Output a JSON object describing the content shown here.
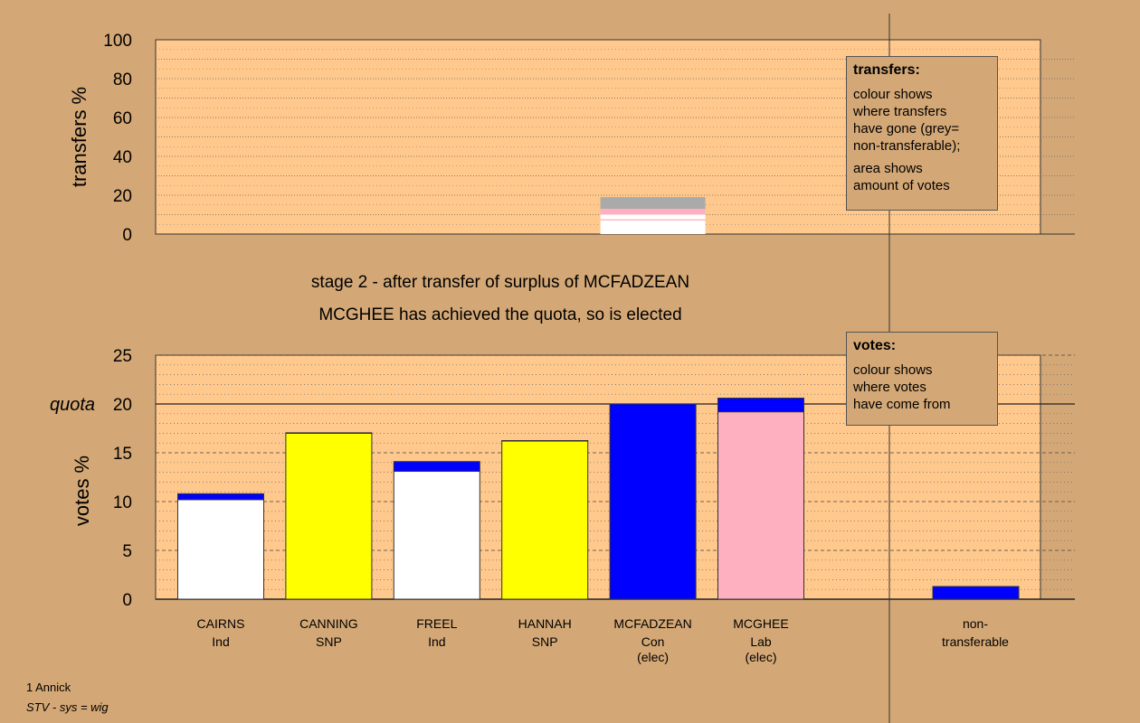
{
  "chart_data": [
    {
      "type": "bar",
      "title": "stage 2 - after transfer of surplus of MCFADZEAN",
      "ylabel": "transfers %",
      "ylim": [
        0,
        100
      ],
      "yticks": [
        0,
        20,
        40,
        60,
        80,
        100
      ],
      "segments": [
        {
          "category": "MCFADZEAN",
          "from": 0,
          "to": 7,
          "color": "#ffffff"
        },
        {
          "category": "MCFADZEAN",
          "from": 7,
          "to": 7.6,
          "color": "#ffb0c0"
        },
        {
          "category": "MCFADZEAN",
          "from": 7.6,
          "to": 10,
          "color": "#ffffff"
        },
        {
          "category": "MCFADZEAN",
          "from": 10,
          "to": 13,
          "color": "#ffb0c0"
        },
        {
          "category": "MCFADZEAN",
          "from": 13,
          "to": 19,
          "color": "#aaaaaa"
        }
      ],
      "legend_box": {
        "heading": "transfers:",
        "lines1": [
          "colour shows",
          "where transfers",
          "have gone (grey=",
          "non-transferable);"
        ],
        "lines2": [
          "area shows",
          "amount of votes"
        ]
      }
    },
    {
      "type": "bar",
      "subtitle": "MCGHEE has achieved the quota, so is elected",
      "ylabel": "votes %",
      "ylim": [
        0,
        25
      ],
      "yticks": [
        0,
        5,
        10,
        15,
        20,
        25
      ],
      "quota": 20,
      "quota_label": "quota",
      "categories": [
        {
          "name": "CAIRNS",
          "party": "Ind",
          "status": "",
          "base": 10.2,
          "base_color": "#ffffff",
          "transfer": 0.6
        },
        {
          "name": "CANNING",
          "party": "SNP",
          "status": "",
          "base": 17.0,
          "base_color": "#ffff00",
          "transfer": 0.05
        },
        {
          "name": "FREEL",
          "party": "Ind",
          "status": "",
          "base": 13.1,
          "base_color": "#ffffff",
          "transfer": 1.0
        },
        {
          "name": "HANNAH",
          "party": "SNP",
          "status": "",
          "base": 16.2,
          "base_color": "#ffff00",
          "transfer": 0.05
        },
        {
          "name": "MCFADZEAN",
          "party": "Con",
          "status": "(elec)",
          "base": 20.0,
          "base_color": "#0000ff",
          "transfer": 0
        },
        {
          "name": "MCGHEE",
          "party": "Lab",
          "status": "(elec)",
          "base": 19.2,
          "base_color": "#ffb0c0",
          "transfer": 1.4
        }
      ],
      "nontransferable": {
        "label_1": "non-",
        "label_2": "transferable",
        "value": 1.3,
        "color": "#0000ff"
      },
      "legend_box": {
        "heading": "votes:",
        "lines1": [
          "colour shows",
          "where votes",
          "have come from"
        ]
      }
    }
  ],
  "footer": {
    "line1": "1 Annick",
    "line2": "STV - sys = wig"
  },
  "colors": {
    "background": "#d4a876",
    "plot_area": "#ffc88c",
    "transfer_color": "#0000ff"
  }
}
